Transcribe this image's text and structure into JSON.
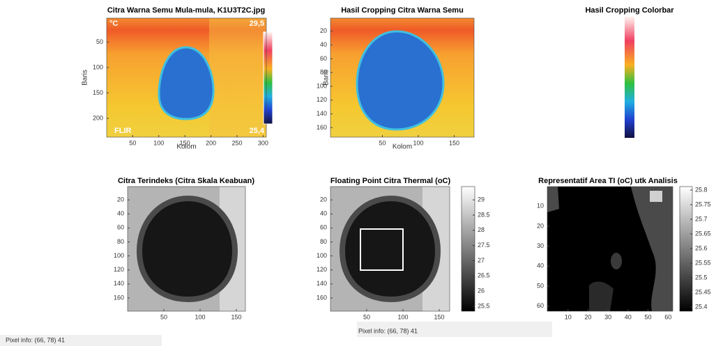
{
  "panels": [
    {
      "title": "Citra Warna Semu Mula-mula, K1U3T2C.jpg",
      "x_label": "Kolom",
      "y_label": "Baris",
      "x_ticks": [
        50,
        100,
        150,
        200,
        250,
        300
      ],
      "y_ticks": [
        50,
        100,
        150,
        200
      ],
      "overlay": {
        "unit": "°C",
        "max": "29,5",
        "min": "25,4",
        "brand": "FLIR"
      }
    },
    {
      "title": "Hasil Cropping Citra Warna Semu",
      "x_label": "Kolom",
      "y_label": "Baris",
      "x_ticks": [
        50,
        100,
        150
      ],
      "y_ticks": [
        20,
        40,
        60,
        80,
        100,
        120,
        140,
        160
      ]
    },
    {
      "title": "Hasil Cropping Colorbar"
    },
    {
      "title": "Citra Terindeks (Citra Skala Keabuan)",
      "x_ticks": [
        50,
        100,
        150
      ],
      "y_ticks": [
        20,
        40,
        60,
        80,
        100,
        120,
        140,
        160
      ]
    },
    {
      "title": "Floating Point Citra Thermal (oC)",
      "x_ticks": [
        50,
        100,
        150
      ],
      "y_ticks": [
        20,
        40,
        60,
        80,
        100,
        120,
        140,
        160
      ],
      "colorbar_ticks": [
        25.5,
        26,
        26.5,
        27,
        27.5,
        28,
        28.5,
        29
      ]
    },
    {
      "title": "Representatif Area TI (oC) utk Analisis",
      "x_ticks": [
        10,
        20,
        30,
        40,
        50,
        60
      ],
      "y_ticks": [
        10,
        20,
        30,
        40,
        50,
        60
      ],
      "colorbar_ticks": [
        25.4,
        25.45,
        25.5,
        25.55,
        25.6,
        25.65,
        25.7,
        25.75,
        25.8
      ]
    }
  ],
  "pixel_info": [
    "Pixel info: (66, 78)  41",
    "Pixel info: (66, 78)  41"
  ]
}
